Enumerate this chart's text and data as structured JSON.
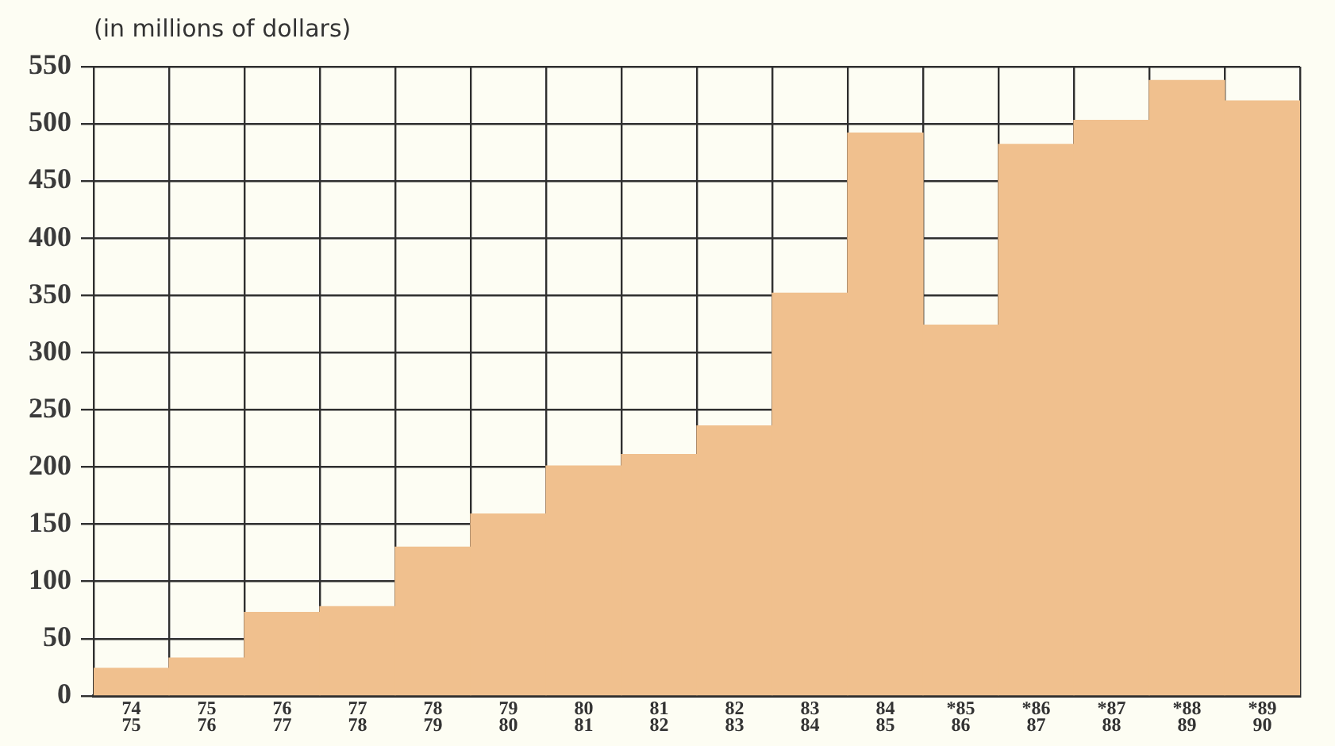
{
  "chart_data": {
    "type": "bar",
    "title": "(in millions of dollars)",
    "categories": [
      "74\n75",
      "75\n76",
      "76\n77",
      "77\n78",
      "78\n79",
      "79\n80",
      "80\n81",
      "81\n82",
      "82\n83",
      "83\n84",
      "84\n85",
      "*85\n86",
      "*86\n87",
      "*87\n88",
      "*88\n89",
      "*89\n90"
    ],
    "values": [
      24,
      33,
      73,
      78,
      130,
      159,
      201,
      211,
      236,
      352,
      492,
      324,
      482,
      503,
      538,
      520
    ],
    "color": "#f0c08e",
    "ylim": [
      0,
      550
    ],
    "yticks": [
      0,
      50,
      100,
      150,
      200,
      250,
      300,
      350,
      400,
      450,
      500,
      550
    ],
    "grid": true,
    "legend": false
  }
}
